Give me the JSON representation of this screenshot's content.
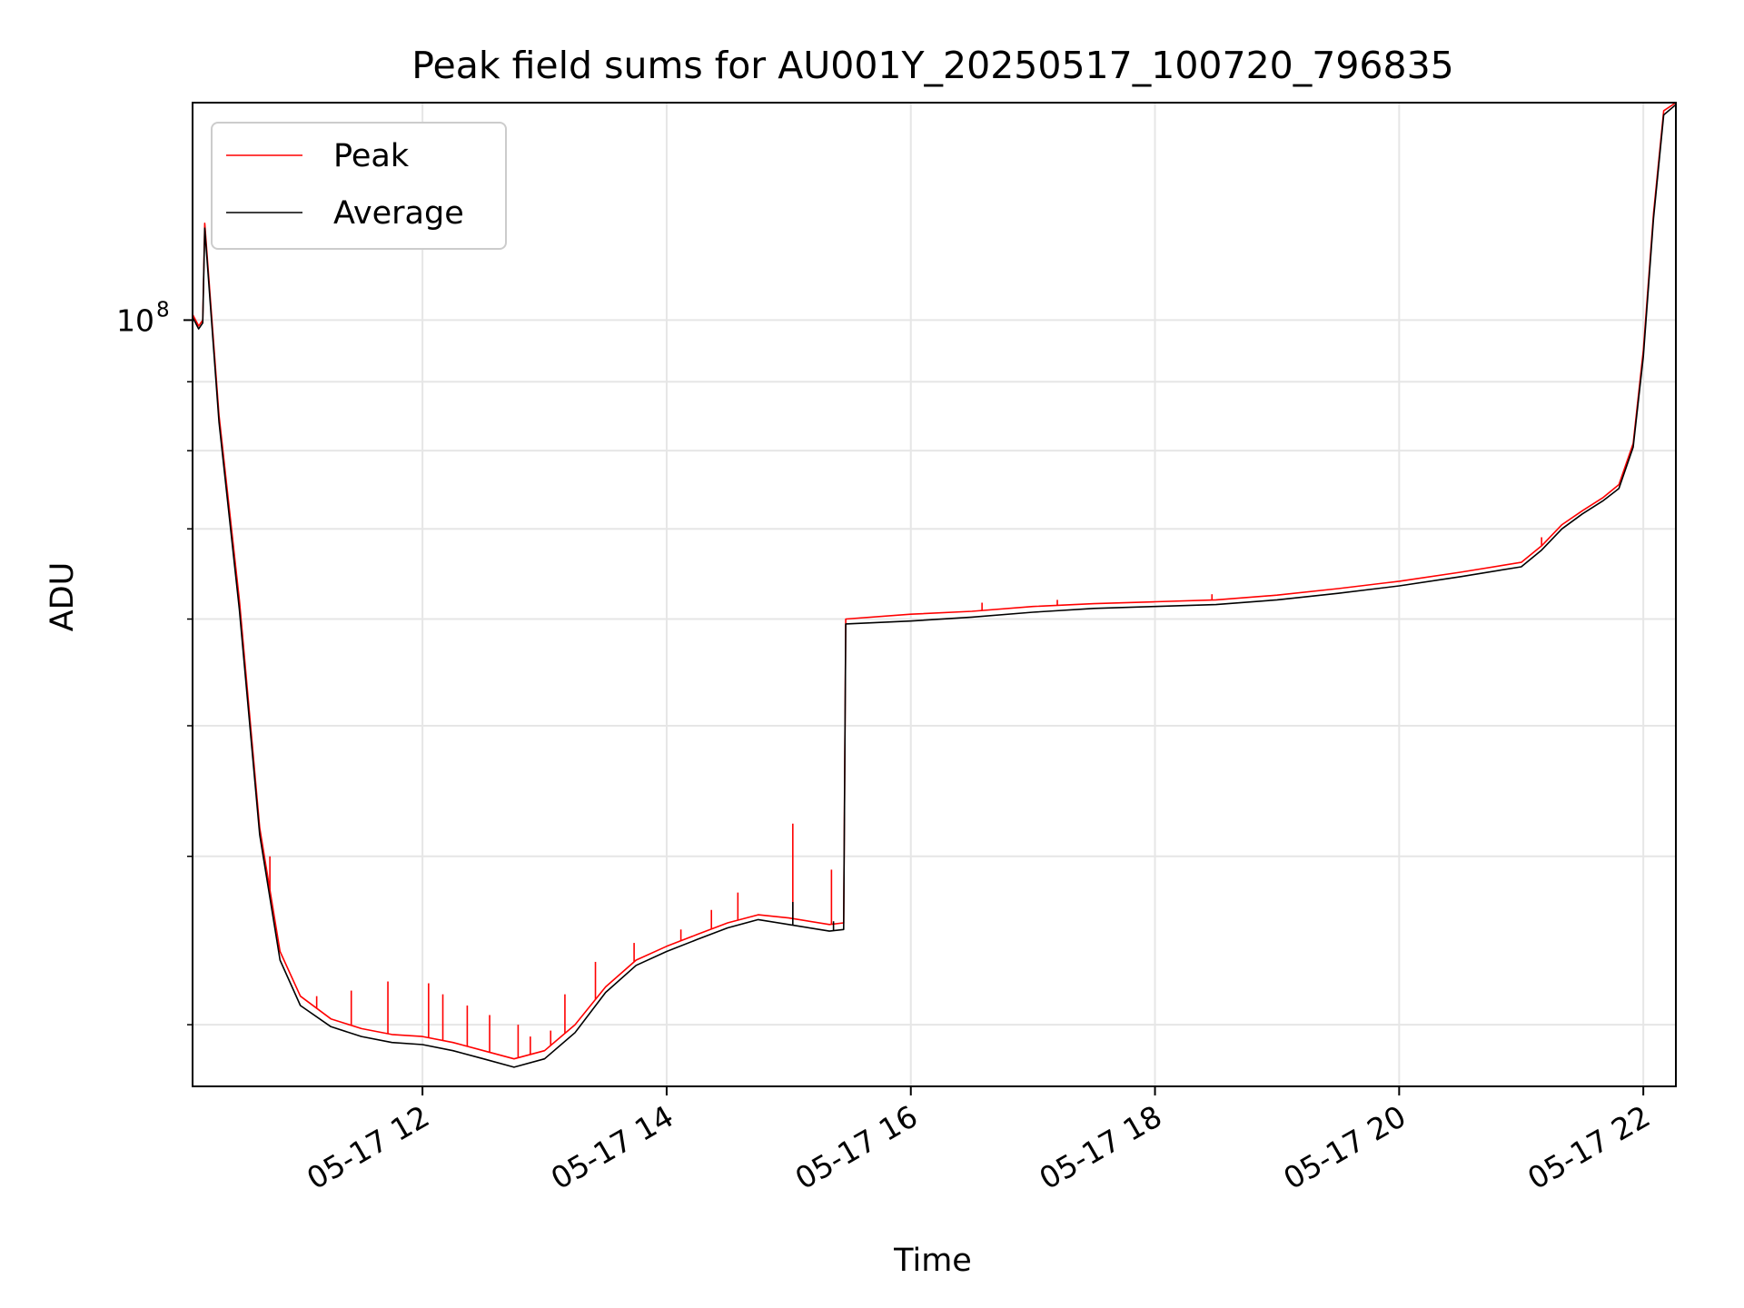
{
  "chart_data": {
    "type": "line",
    "title": "Peak field sums for AU001Y_20250517_100720_796835",
    "xlabel": "Time",
    "ylabel": "ADU",
    "y_scale": "log",
    "ylim": [
      27000000,
      145000000
    ],
    "xlim": [
      "2025-05-17 10:07",
      "2025-05-17 22:16"
    ],
    "x_ticks": [
      {
        "value": "2025-05-17 12:00",
        "label": "05-17 12"
      },
      {
        "value": "2025-05-17 14:00",
        "label": "05-17 14"
      },
      {
        "value": "2025-05-17 16:00",
        "label": "05-17 16"
      },
      {
        "value": "2025-05-17 18:00",
        "label": "05-17 18"
      },
      {
        "value": "2025-05-17 20:00",
        "label": "05-17 20"
      },
      {
        "value": "2025-05-17 22:00",
        "label": "05-17 22"
      }
    ],
    "y_major_ticks": [
      {
        "value": 100000000,
        "label": "10",
        "exponent": "8"
      }
    ],
    "y_minor_ticks": [
      30000000,
      40000000,
      50000000,
      60000000,
      70000000,
      80000000,
      90000000
    ],
    "grid": true,
    "legend": {
      "position": "top-left"
    },
    "series": [
      {
        "name": "Peak",
        "color": "#ff0000",
        "points": [
          [
            "2025-05-17 10:07",
            101000000
          ],
          [
            "2025-05-17 10:10",
            99000000
          ],
          [
            "2025-05-17 10:12",
            100000000
          ],
          [
            "2025-05-17 10:13",
            118000000
          ],
          [
            "2025-05-17 10:20",
            85000000
          ],
          [
            "2025-05-17 10:30",
            62000000
          ],
          [
            "2025-05-17 10:40",
            42000000
          ],
          [
            "2025-05-17 10:50",
            34000000
          ],
          [
            "2025-05-17 11:00",
            31500000
          ],
          [
            "2025-05-17 11:15",
            30300000
          ],
          [
            "2025-05-17 11:30",
            29800000
          ],
          [
            "2025-05-17 11:45",
            29500000
          ],
          [
            "2025-05-17 12:00",
            29400000
          ],
          [
            "2025-05-17 12:15",
            29100000
          ],
          [
            "2025-05-17 12:30",
            28700000
          ],
          [
            "2025-05-17 12:45",
            28300000
          ],
          [
            "2025-05-17 13:00",
            28700000
          ],
          [
            "2025-05-17 13:15",
            30000000
          ],
          [
            "2025-05-17 13:30",
            32000000
          ],
          [
            "2025-05-17 13:45",
            33500000
          ],
          [
            "2025-05-17 14:00",
            34300000
          ],
          [
            "2025-05-17 14:15",
            35000000
          ],
          [
            "2025-05-17 14:30",
            35700000
          ],
          [
            "2025-05-17 14:45",
            36200000
          ],
          [
            "2025-05-17 15:00",
            36000000
          ],
          [
            "2025-05-17 15:20",
            35600000
          ],
          [
            "2025-05-17 15:27",
            35700000
          ],
          [
            "2025-05-17 15:28",
            60000000
          ],
          [
            "2025-05-17 16:00",
            60500000
          ],
          [
            "2025-05-17 16:30",
            60800000
          ],
          [
            "2025-05-17 17:00",
            61300000
          ],
          [
            "2025-05-17 17:30",
            61600000
          ],
          [
            "2025-05-17 18:00",
            61800000
          ],
          [
            "2025-05-17 18:30",
            62000000
          ],
          [
            "2025-05-17 19:00",
            62500000
          ],
          [
            "2025-05-17 19:30",
            63200000
          ],
          [
            "2025-05-17 20:00",
            64000000
          ],
          [
            "2025-05-17 20:30",
            65000000
          ],
          [
            "2025-05-17 21:00",
            66100000
          ],
          [
            "2025-05-17 21:10",
            68000000
          ],
          [
            "2025-05-17 21:20",
            70500000
          ],
          [
            "2025-05-17 21:30",
            72200000
          ],
          [
            "2025-05-17 21:40",
            73800000
          ],
          [
            "2025-05-17 21:48",
            75500000
          ],
          [
            "2025-05-17 21:55",
            81000000
          ],
          [
            "2025-05-17 22:00",
            95000000
          ],
          [
            "2025-05-17 22:05",
            120000000
          ],
          [
            "2025-05-17 22:10",
            143000000
          ],
          [
            "2025-05-17 22:16",
            145000000
          ]
        ],
        "spikes": [
          [
            "2025-05-17 10:45",
            40000000
          ],
          [
            "2025-05-17 11:08",
            31500000
          ],
          [
            "2025-05-17 11:25",
            31800000
          ],
          [
            "2025-05-17 11:43",
            32300000
          ],
          [
            "2025-05-17 12:03",
            32200000
          ],
          [
            "2025-05-17 12:10",
            31600000
          ],
          [
            "2025-05-17 12:22",
            31000000
          ],
          [
            "2025-05-17 12:33",
            30500000
          ],
          [
            "2025-05-17 12:47",
            30000000
          ],
          [
            "2025-05-17 12:53",
            29400000
          ],
          [
            "2025-05-17 13:03",
            29700000
          ],
          [
            "2025-05-17 13:10",
            31600000
          ],
          [
            "2025-05-17 13:25",
            33400000
          ],
          [
            "2025-05-17 13:44",
            34500000
          ],
          [
            "2025-05-17 14:07",
            35300000
          ],
          [
            "2025-05-17 14:22",
            36500000
          ],
          [
            "2025-05-17 14:35",
            37600000
          ],
          [
            "2025-05-17 15:02",
            42300000
          ],
          [
            "2025-05-17 15:21",
            39100000
          ],
          [
            "2025-05-17 16:35",
            61700000
          ],
          [
            "2025-05-17 17:12",
            62000000
          ],
          [
            "2025-05-17 18:28",
            62600000
          ],
          [
            "2025-05-17 21:10",
            69000000
          ]
        ]
      },
      {
        "name": "Average",
        "color": "#000000",
        "points": [
          [
            "2025-05-17 10:07",
            100500000
          ],
          [
            "2025-05-17 10:10",
            98500000
          ],
          [
            "2025-05-17 10:12",
            99500000
          ],
          [
            "2025-05-17 10:13",
            117000000
          ],
          [
            "2025-05-17 10:20",
            84000000
          ],
          [
            "2025-05-17 10:30",
            61000000
          ],
          [
            "2025-05-17 10:40",
            41500000
          ],
          [
            "2025-05-17 10:50",
            33500000
          ],
          [
            "2025-05-17 11:00",
            31000000
          ],
          [
            "2025-05-17 11:15",
            29900000
          ],
          [
            "2025-05-17 11:30",
            29400000
          ],
          [
            "2025-05-17 11:45",
            29100000
          ],
          [
            "2025-05-17 12:00",
            29000000
          ],
          [
            "2025-05-17 12:15",
            28700000
          ],
          [
            "2025-05-17 12:30",
            28300000
          ],
          [
            "2025-05-17 12:45",
            27900000
          ],
          [
            "2025-05-17 13:00",
            28300000
          ],
          [
            "2025-05-17 13:15",
            29600000
          ],
          [
            "2025-05-17 13:30",
            31700000
          ],
          [
            "2025-05-17 13:45",
            33200000
          ],
          [
            "2025-05-17 14:00",
            34000000
          ],
          [
            "2025-05-17 14:15",
            34700000
          ],
          [
            "2025-05-17 14:30",
            35400000
          ],
          [
            "2025-05-17 14:45",
            35900000
          ],
          [
            "2025-05-17 15:00",
            35600000
          ],
          [
            "2025-05-17 15:20",
            35200000
          ],
          [
            "2025-05-17 15:27",
            35300000
          ],
          [
            "2025-05-17 15:28",
            59500000
          ],
          [
            "2025-05-17 16:00",
            59800000
          ],
          [
            "2025-05-17 16:30",
            60200000
          ],
          [
            "2025-05-17 17:00",
            60700000
          ],
          [
            "2025-05-17 17:30",
            61100000
          ],
          [
            "2025-05-17 18:00",
            61300000
          ],
          [
            "2025-05-17 18:30",
            61500000
          ],
          [
            "2025-05-17 19:00",
            62000000
          ],
          [
            "2025-05-17 19:30",
            62700000
          ],
          [
            "2025-05-17 20:00",
            63500000
          ],
          [
            "2025-05-17 20:30",
            64500000
          ],
          [
            "2025-05-17 21:00",
            65600000
          ],
          [
            "2025-05-17 21:10",
            67500000
          ],
          [
            "2025-05-17 21:20",
            70000000
          ],
          [
            "2025-05-17 21:30",
            71800000
          ],
          [
            "2025-05-17 21:40",
            73400000
          ],
          [
            "2025-05-17 21:48",
            75000000
          ],
          [
            "2025-05-17 21:55",
            80500000
          ],
          [
            "2025-05-17 22:00",
            94000000
          ],
          [
            "2025-05-17 22:05",
            119000000
          ],
          [
            "2025-05-17 22:10",
            142000000
          ],
          [
            "2025-05-17 22:16",
            144500000
          ]
        ],
        "spikes": [
          [
            "2025-05-17 15:02",
            37000000
          ],
          [
            "2025-05-17 15:22",
            35800000
          ]
        ]
      }
    ]
  }
}
